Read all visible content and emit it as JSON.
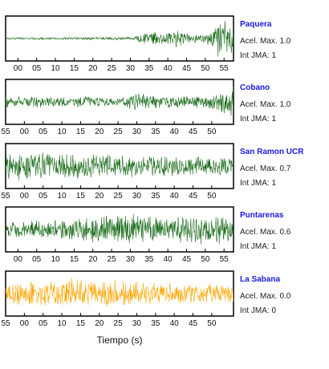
{
  "xlabel": "Tiempo (s)",
  "chart_data": {
    "type": "line",
    "xlabel": "Tiempo (s)",
    "title": "",
    "tick_labels": [
      "55",
      "00",
      "05",
      "10",
      "15",
      "20",
      "25",
      "30",
      "35",
      "40",
      "45",
      "50",
      "55"
    ],
    "colors": {
      "accent": "#1a6b1a",
      "alt": "#ffa500",
      "station_label": "#1a1adc"
    },
    "series": [
      {
        "name": "Paquera",
        "aceleracion": "Acel. Max. 1.0",
        "intensidad": "Int JMA: 1",
        "color": "#1a6b1a",
        "ticks_show": [
          1,
          2,
          3,
          4,
          5,
          6,
          7,
          8,
          9,
          10,
          11,
          12
        ],
        "envelope": [
          [
            0,
            0.05
          ],
          [
            0.55,
            0.08
          ],
          [
            0.62,
            0.3
          ],
          [
            0.75,
            0.45
          ],
          [
            0.83,
            0.2
          ],
          [
            0.9,
            0.35
          ],
          [
            0.93,
            1.0
          ],
          [
            1,
            0.85
          ]
        ]
      },
      {
        "name": "Cobano",
        "aceleracion": "Acel. Max. 1.0",
        "intensidad": "Int JMA: 1",
        "color": "#1a6b1a",
        "ticks_show": [
          0,
          1,
          2,
          3,
          4,
          5,
          6,
          7,
          8,
          9,
          10,
          11
        ],
        "envelope": [
          [
            0,
            0.3
          ],
          [
            0.5,
            0.25
          ],
          [
            0.58,
            0.45
          ],
          [
            0.65,
            0.35
          ],
          [
            0.8,
            0.3
          ],
          [
            0.93,
            0.5
          ],
          [
            1,
            1.0
          ]
        ]
      },
      {
        "name": "San Ramon UCR",
        "aceleracion": "Acel. Max. 0.7",
        "intensidad": "Int JMA: 1",
        "color": "#1a6b1a",
        "ticks_show": [
          0,
          1,
          2,
          3,
          4,
          5,
          6,
          7,
          8,
          9,
          10,
          11
        ],
        "envelope": [
          [
            0,
            0.75
          ],
          [
            0.3,
            0.65
          ],
          [
            0.6,
            0.55
          ],
          [
            1,
            0.5
          ]
        ]
      },
      {
        "name": "Puntarenas",
        "aceleracion": "Acel. Max. 0.6",
        "intensidad": "Int JMA: 1",
        "color": "#1a6b1a",
        "ticks_show": [
          1,
          2,
          3,
          4,
          5,
          6,
          7,
          8,
          9,
          10,
          11,
          12
        ],
        "envelope": [
          [
            0,
            0.35
          ],
          [
            0.2,
            0.5
          ],
          [
            0.4,
            0.7
          ],
          [
            0.55,
            0.8
          ],
          [
            0.7,
            0.55
          ],
          [
            0.88,
            0.9
          ],
          [
            1,
            0.6
          ]
        ]
      },
      {
        "name": "La Sabana",
        "aceleracion": "Acel. Max. 0.0",
        "intensidad": "Int JMA: 0",
        "color": "#ffa500",
        "ticks_show": [
          0,
          1,
          2,
          3,
          4,
          5,
          6,
          7,
          8,
          9,
          10,
          11
        ],
        "envelope": [
          [
            0,
            0.55
          ],
          [
            0.3,
            0.8
          ],
          [
            0.6,
            0.6
          ],
          [
            1,
            0.45
          ]
        ]
      }
    ]
  }
}
